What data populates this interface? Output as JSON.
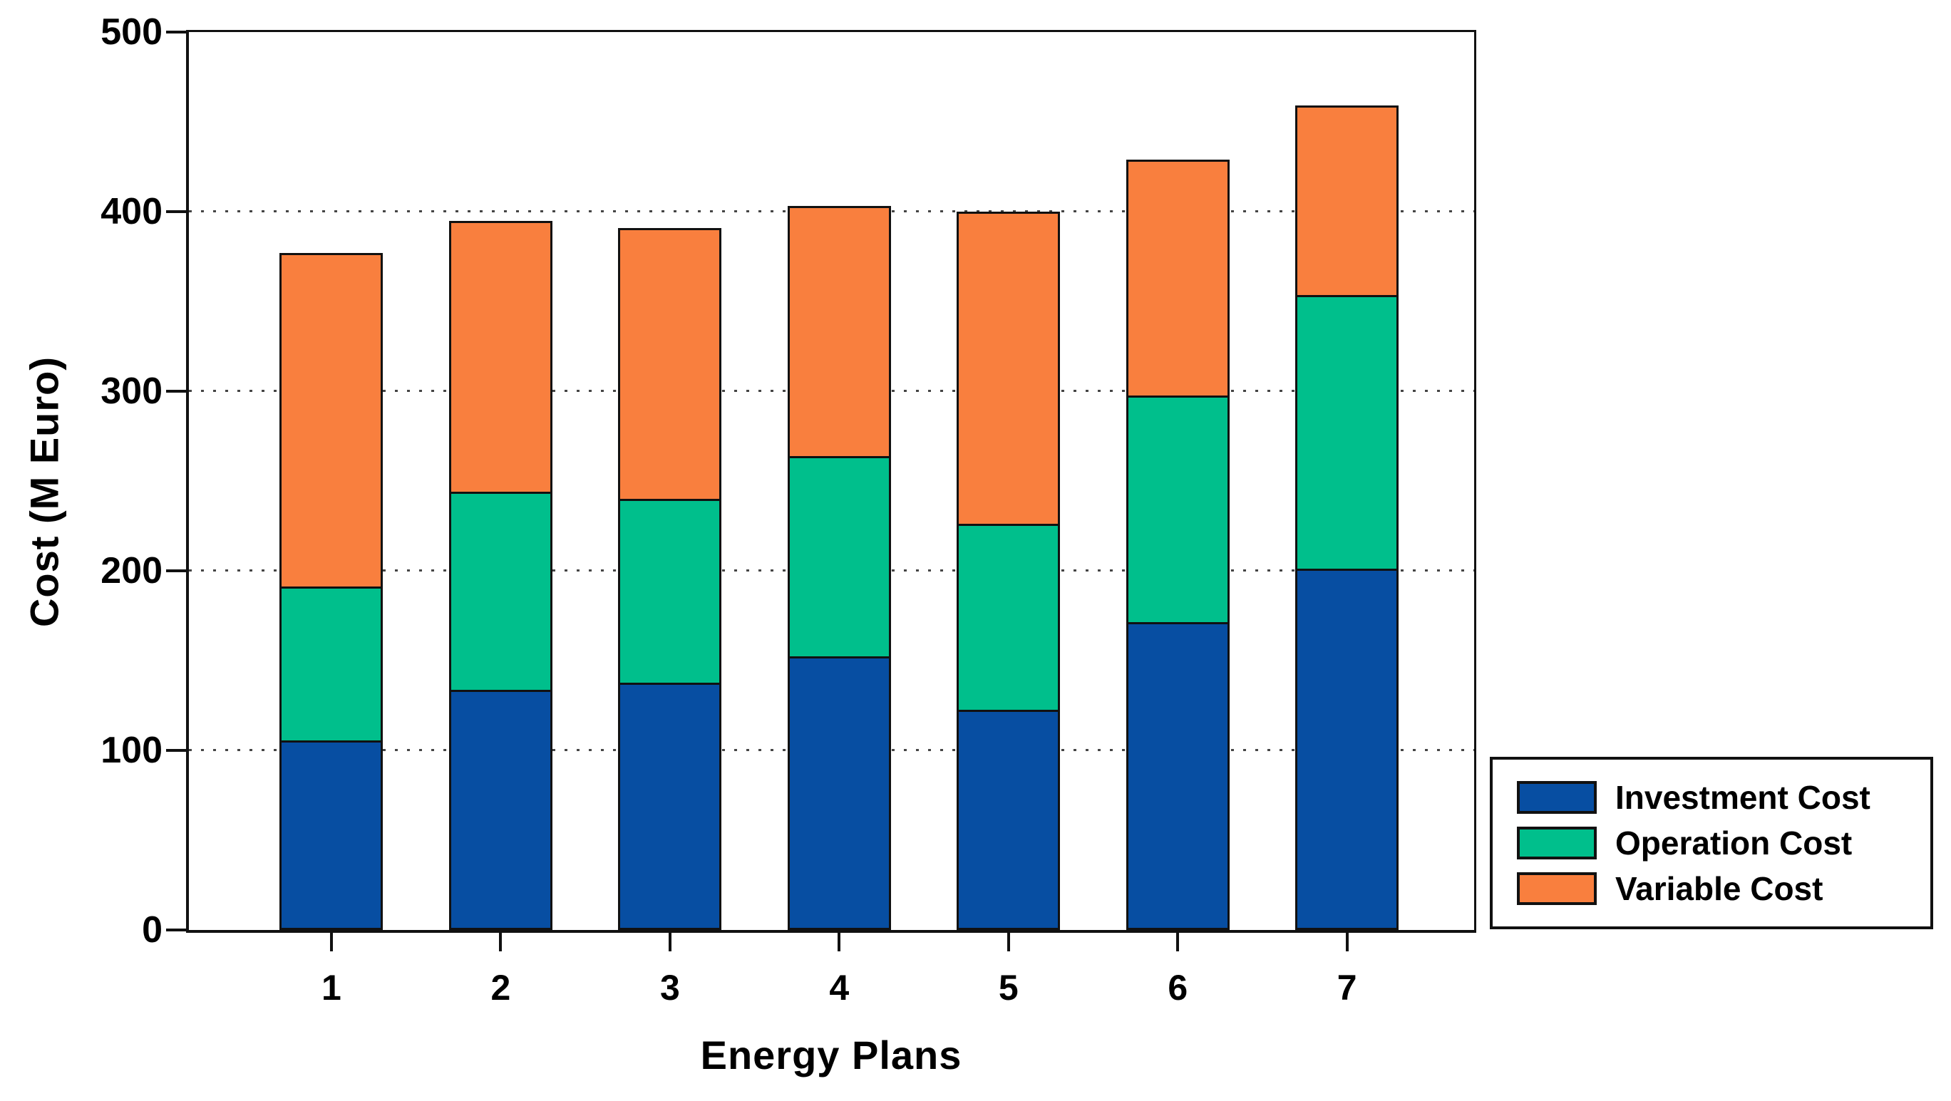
{
  "chart_data": {
    "type": "bar",
    "stacked": true,
    "title": "",
    "xlabel": "Energy Plans",
    "ylabel": "Cost (M Euro)",
    "categories": [
      "1",
      "2",
      "3",
      "4",
      "5",
      "6",
      "7"
    ],
    "series": [
      {
        "name": "Investment Cost",
        "color": "#074EA2",
        "values": [
          104,
          132,
          136,
          151,
          121,
          170,
          200
        ]
      },
      {
        "name": "Operation Cost",
        "color": "#00BF8C",
        "values": [
          86,
          111,
          103,
          112,
          104,
          127,
          153
        ]
      },
      {
        "name": "Variable Cost",
        "color": "#F97F3E",
        "values": [
          187,
          152,
          152,
          140,
          175,
          132,
          106
        ]
      }
    ],
    "stack_totals": [
      377,
      395,
      391,
      403,
      400,
      429,
      459
    ],
    "ylim": [
      0,
      500
    ],
    "yticks": [
      0,
      100,
      200,
      300,
      400,
      500
    ],
    "y_tick_labels": [
      "0",
      "100",
      "200",
      "300",
      "400",
      "500"
    ],
    "gridlines_at": [
      100,
      200,
      300,
      400
    ],
    "grid_style": "horizontal-dotted",
    "legend": {
      "position": "outside-bottom-right",
      "items": [
        "Investment Cost",
        "Operation Cost",
        "Variable Cost"
      ]
    }
  },
  "colors": {
    "axis": "#111111",
    "text": "#000000",
    "grid_dot": "#454545",
    "plot_background": "#ffffff"
  }
}
